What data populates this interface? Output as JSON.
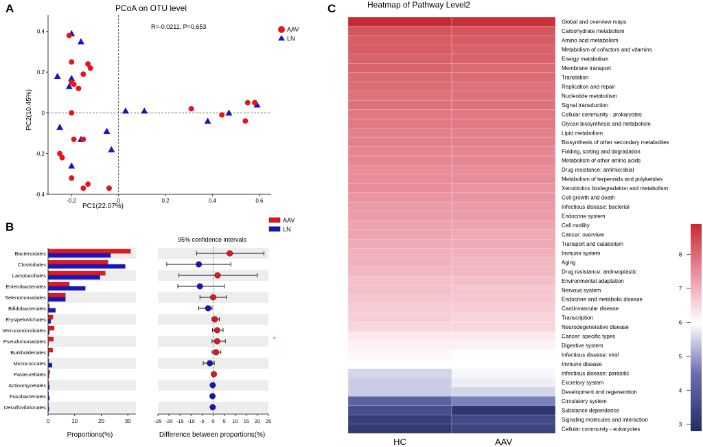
{
  "panel_labels": {
    "a": "A",
    "b": "B",
    "c": "C"
  },
  "colors": {
    "aav": "#e8141b",
    "ln": "#1515c8"
  },
  "chart_data": [
    {
      "id": "pcoa",
      "type": "scatter",
      "title": "PCoA on OTU level",
      "xlabel": "PC1(22.07%)",
      "ylabel": "PC2(10.45%)",
      "xlim": [
        -0.3,
        0.65
      ],
      "ylim": [
        -0.4,
        0.48
      ],
      "xticks": [
        -0.2,
        0,
        0.2,
        0.4,
        0.6
      ],
      "xtick_labels": [
        "-0.2",
        "0",
        "0.2",
        "0.4",
        "0.6"
      ],
      "yticks": [
        -0.4,
        -0.2,
        0,
        0.2,
        0.4
      ],
      "ytick_labels": [
        "-0.4",
        "-0.2",
        "0",
        "0.2",
        "0.4"
      ],
      "annotation": "R=-0.0211, P=0.653",
      "series": [
        {
          "name": "AAV",
          "marker": "circle",
          "points": [
            [
              -0.21,
              0.38
            ],
            [
              -0.2,
              0.25
            ],
            [
              -0.13,
              0.24
            ],
            [
              -0.12,
              0.22
            ],
            [
              -0.15,
              0.19
            ],
            [
              -0.2,
              0.15
            ],
            [
              -0.17,
              0.12
            ],
            [
              -0.19,
              0.14
            ],
            [
              -0.2,
              0.0
            ],
            [
              -0.19,
              -0.13
            ],
            [
              -0.15,
              -0.13
            ],
            [
              -0.25,
              -0.2
            ],
            [
              -0.24,
              -0.22
            ],
            [
              -0.2,
              -0.32
            ],
            [
              -0.15,
              -0.37
            ],
            [
              -0.13,
              -0.35
            ],
            [
              -0.04,
              -0.37
            ],
            [
              0.31,
              0.02
            ],
            [
              0.44,
              -0.01
            ],
            [
              0.54,
              -0.04
            ],
            [
              0.55,
              0.05
            ],
            [
              0.58,
              0.05
            ]
          ]
        },
        {
          "name": "LN",
          "marker": "triangle",
          "points": [
            [
              -0.2,
              0.39
            ],
            [
              -0.16,
              0.35
            ],
            [
              -0.26,
              0.18
            ],
            [
              -0.2,
              0.17
            ],
            [
              -0.21,
              0.13
            ],
            [
              -0.25,
              -0.07
            ],
            [
              -0.16,
              -0.13
            ],
            [
              -0.05,
              -0.09
            ],
            [
              -0.03,
              -0.18
            ],
            [
              -0.2,
              -0.26
            ],
            [
              0.03,
              0.01
            ],
            [
              0.11,
              0.01
            ],
            [
              0.38,
              -0.04
            ],
            [
              0.47,
              0.0
            ],
            [
              0.59,
              0.04
            ]
          ]
        }
      ],
      "legend_position": "top-right"
    },
    {
      "id": "proportions",
      "type": "bar",
      "orientation": "horizontal",
      "xlabel": "Proportions(%)",
      "xlim": [
        0,
        32
      ],
      "xticks": [
        0,
        10,
        20,
        30
      ],
      "categories": [
        "Bacteroidales",
        "Clostridiales",
        "Lactobacillales",
        "Enterobacteriales",
        "Selenomonadales",
        "Bifidobacteriales",
        "Erysipelotrichales",
        "Verrucomicrobiales",
        "Pseudomonadales",
        "Burkholderiales",
        "Micrococcales",
        "Pasteurellales",
        "Actinomycetales",
        "Fusobacteriales",
        "Desulfovibrionales"
      ],
      "series": [
        {
          "name": "AAV",
          "values": [
            31,
            22.5,
            21.5,
            8,
            6.5,
            0.5,
            1.8,
            2.3,
            2,
            1.7,
            0.3,
            0.6,
            0.3,
            0.2,
            0.15
          ]
        },
        {
          "name": "LN",
          "values": [
            23.5,
            29,
            19.5,
            14,
            6.5,
            2.8,
            1,
            0.5,
            0.2,
            0.3,
            1.5,
            0.3,
            0.5,
            0.5,
            0.3
          ]
        }
      ]
    },
    {
      "id": "ci",
      "type": "scatter",
      "title": "95% confidence intervals",
      "xlabel": "Difference between proportions(%)",
      "xlim": [
        -25,
        25
      ],
      "xticks": [
        -25,
        -20,
        -15,
        -10,
        -5,
        0,
        5,
        10,
        15,
        20,
        25
      ],
      "xtick_labels": [
        "-25",
        "-20",
        "-15",
        "-10",
        "-5",
        "0",
        "5",
        "10",
        "15",
        "20",
        "25"
      ],
      "legend": [
        "AAV",
        "LN"
      ],
      "points": [
        {
          "category": "Bacteroidales",
          "diff": 7.5,
          "low": -7.5,
          "high": 23,
          "group": "AAV"
        },
        {
          "category": "Clostridiales",
          "diff": -6.5,
          "low": -21,
          "high": 8,
          "group": "LN"
        },
        {
          "category": "Lactobacillales",
          "diff": 2,
          "low": -15.5,
          "high": 20,
          "group": "AAV"
        },
        {
          "category": "Enterobacteriales",
          "diff": -6,
          "low": -16,
          "high": 5,
          "group": "LN"
        },
        {
          "category": "Selenomonadales",
          "diff": 0,
          "low": -6,
          "high": 6,
          "group": "AAV"
        },
        {
          "category": "Bifidobacteriales",
          "diff": -2.3,
          "low": -6.5,
          "high": -0.5,
          "group": "LN"
        },
        {
          "category": "Erysipelotrichales",
          "diff": 0.8,
          "low": -0.5,
          "high": 2.8,
          "group": "AAV"
        },
        {
          "category": "Verrucomicrobiales",
          "diff": 1.8,
          "low": -0.3,
          "high": 4.5,
          "group": "AAV"
        },
        {
          "category": "Pseudomonadales",
          "diff": 1.8,
          "low": -0.5,
          "high": 5.5,
          "group": "AAV"
        },
        {
          "category": "Burkholderiales",
          "diff": 1.3,
          "low": -0.5,
          "high": 3.5,
          "group": "AAV"
        },
        {
          "category": "Micrococcales",
          "diff": -1.5,
          "low": -4.5,
          "high": 0.5,
          "group": "LN"
        },
        {
          "category": "Pasteurellales",
          "diff": 0.3,
          "low": -0.5,
          "high": 1.3,
          "group": "AAV"
        },
        {
          "category": "Actinomycetales",
          "diff": -0.2,
          "low": -1,
          "high": 0.3,
          "group": "LN"
        },
        {
          "category": "Fusobacteriales",
          "diff": -0.3,
          "low": -0.8,
          "high": 0.2,
          "group": "LN"
        },
        {
          "category": "Desulfovibrionales",
          "diff": -0.2,
          "low": -0.6,
          "high": 0.2,
          "group": "LN"
        }
      ],
      "significance_marker": "*"
    },
    {
      "id": "heatmap",
      "type": "heatmap",
      "title": "Heatmap of Pathway Level2",
      "columns": [
        "HC",
        "AAV"
      ],
      "rows": [
        "Global and overview maps",
        "Carbohydrate metabolism",
        "Amino acid metabolism",
        "Metabolism of cofactors and vitamins",
        "Energy metabolism",
        "Membrane transport",
        "Translation",
        "Replication and repair",
        "Nucleotide metabolism",
        "Signal transduction",
        "Cellular community - prokaryotes",
        "Glycan biosynthesis and metabolism",
        "Lipid metabolism",
        "Biosynthesis of other secondary metabolites",
        "Folding, sorting and degradation",
        "Metabolism of other amino acids",
        "Drug resistance: antimicrobial",
        "Metabolism of terpenoids and polyketides",
        "Xenobiotics biodegradation and metabolism",
        "Cell growth and death",
        "Infectious disease: bacterial",
        "Endocrine system",
        "Cell motility",
        "Cancer: overview",
        "Transport and catabolism",
        "Immune system",
        "Aging",
        "Drug resistance: antineoplastic",
        "Environmental adaptation",
        "Nervous system",
        "Endocrine and metabolic disease",
        "Cardiovascular disease",
        "Transcription",
        "Neurodegenerative disease",
        "Cancer: specific types",
        "Digestive system",
        "Infectious disease: viral",
        "Immune disease",
        "Infectious disease: parasitic",
        "Excretory system",
        "Development and regeneration",
        "Circulatory system",
        "Substance dependence",
        "Signaling molecules and interaction",
        "Cellular community - eukaryotes"
      ],
      "values": [
        [
          8.9,
          8.8
        ],
        [
          8.3,
          8.3
        ],
        [
          8.2,
          8.2
        ],
        [
          8.2,
          8.1
        ],
        [
          8.1,
          8.1
        ],
        [
          8.1,
          8.0
        ],
        [
          8.0,
          8.0
        ],
        [
          8.0,
          7.9
        ],
        [
          7.9,
          7.9
        ],
        [
          7.9,
          7.9
        ],
        [
          7.8,
          7.8
        ],
        [
          7.8,
          7.8
        ],
        [
          7.7,
          7.7
        ],
        [
          7.7,
          7.7
        ],
        [
          7.6,
          7.6
        ],
        [
          7.6,
          7.6
        ],
        [
          7.5,
          7.5
        ],
        [
          7.5,
          7.5
        ],
        [
          7.5,
          7.4
        ],
        [
          7.4,
          7.4
        ],
        [
          7.3,
          7.3
        ],
        [
          7.3,
          7.3
        ],
        [
          7.2,
          7.2
        ],
        [
          7.2,
          7.1
        ],
        [
          7.1,
          7.1
        ],
        [
          7.0,
          7.0
        ],
        [
          7.0,
          6.9
        ],
        [
          6.9,
          6.9
        ],
        [
          6.8,
          6.8
        ],
        [
          6.8,
          6.7
        ],
        [
          6.7,
          6.7
        ],
        [
          6.6,
          6.6
        ],
        [
          6.6,
          6.5
        ],
        [
          6.5,
          6.5
        ],
        [
          6.2,
          6.2
        ],
        [
          6.1,
          6.1
        ],
        [
          6.0,
          5.9
        ],
        [
          5.9,
          5.9
        ],
        [
          5.4,
          5.8
        ],
        [
          5.3,
          5.7
        ],
        [
          5.3,
          5.4
        ],
        [
          3.9,
          4.4
        ],
        [
          3.5,
          3.0
        ],
        [
          3.2,
          3.4
        ],
        [
          3.1,
          3.3
        ]
      ],
      "colorbar": {
        "min": 2.8,
        "max": 8.9,
        "ticks": [
          3,
          4,
          5,
          6,
          7,
          8
        ],
        "tick_labels": [
          "3",
          "4",
          "5",
          "6",
          "7",
          "8"
        ]
      }
    }
  ]
}
